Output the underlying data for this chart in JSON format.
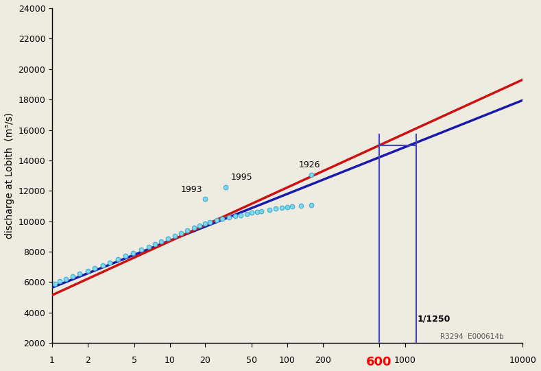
{
  "background_color": "#eeebe0",
  "xlim": [
    1,
    10000
  ],
  "ylim": [
    2000,
    24000
  ],
  "yticks": [
    2000,
    4000,
    6000,
    8000,
    10000,
    12000,
    14000,
    16000,
    18000,
    20000,
    22000,
    24000
  ],
  "xtick_positions": [
    1,
    2,
    5,
    10,
    20,
    50,
    100,
    200,
    600,
    1000,
    10000
  ],
  "xtick_labels": [
    "1",
    "2",
    "5",
    "10",
    "20",
    "50",
    "100",
    "200",
    "600",
    "1000",
    "10000"
  ],
  "ylabel": "discharge at Lobith  (m³/s)",
  "data_points": [
    [
      1.05,
      5900
    ],
    [
      1.15,
      6050
    ],
    [
      1.3,
      6200
    ],
    [
      1.5,
      6380
    ],
    [
      1.7,
      6540
    ],
    [
      2.0,
      6720
    ],
    [
      2.3,
      6900
    ],
    [
      2.7,
      7100
    ],
    [
      3.1,
      7300
    ],
    [
      3.6,
      7500
    ],
    [
      4.2,
      7720
    ],
    [
      4.9,
      7930
    ],
    [
      5.7,
      8130
    ],
    [
      6.6,
      8330
    ],
    [
      7.5,
      8520
    ],
    [
      8.5,
      8700
    ],
    [
      9.7,
      8880
    ],
    [
      11,
      9060
    ],
    [
      12.5,
      9220
    ],
    [
      14,
      9400
    ],
    [
      16,
      9560
    ],
    [
      18,
      9700
    ],
    [
      20,
      9840
    ],
    [
      22,
      9950
    ],
    [
      25,
      10060
    ],
    [
      28,
      10160
    ],
    [
      32,
      10260
    ],
    [
      36,
      10340
    ],
    [
      40,
      10410
    ],
    [
      45,
      10480
    ],
    [
      50,
      10560
    ],
    [
      55,
      10620
    ],
    [
      60,
      10670
    ],
    [
      70,
      10750
    ],
    [
      80,
      10820
    ],
    [
      90,
      10880
    ],
    [
      100,
      10940
    ],
    [
      110,
      10980
    ],
    [
      130,
      11020
    ],
    [
      160,
      11060
    ]
  ],
  "special_points": {
    "1993": [
      20,
      11450
    ],
    "1995": [
      30,
      12250
    ],
    "1926": [
      160,
      13050
    ]
  },
  "line_blue_points": [
    [
      1,
      5650
    ],
    [
      10000,
      17950
    ]
  ],
  "line_red_points": [
    [
      1,
      5150
    ],
    [
      10000,
      19300
    ]
  ],
  "cross_left_x": 600,
  "cross_right_x": 1250,
  "cross_y": 15000,
  "cross_top_y": 15700,
  "marker_1250_label": "1/1250",
  "annotation_text": "R3294  E000614b",
  "line_color_blue": "#1a1aaa",
  "line_color_red": "#cc1111",
  "marker_color": "#7ed8f0",
  "marker_edge_color": "#40aad0",
  "cross_color": "#4444bb",
  "ytick_fontsize": 9,
  "xtick_fontsize": 9,
  "ylabel_fontsize": 10
}
